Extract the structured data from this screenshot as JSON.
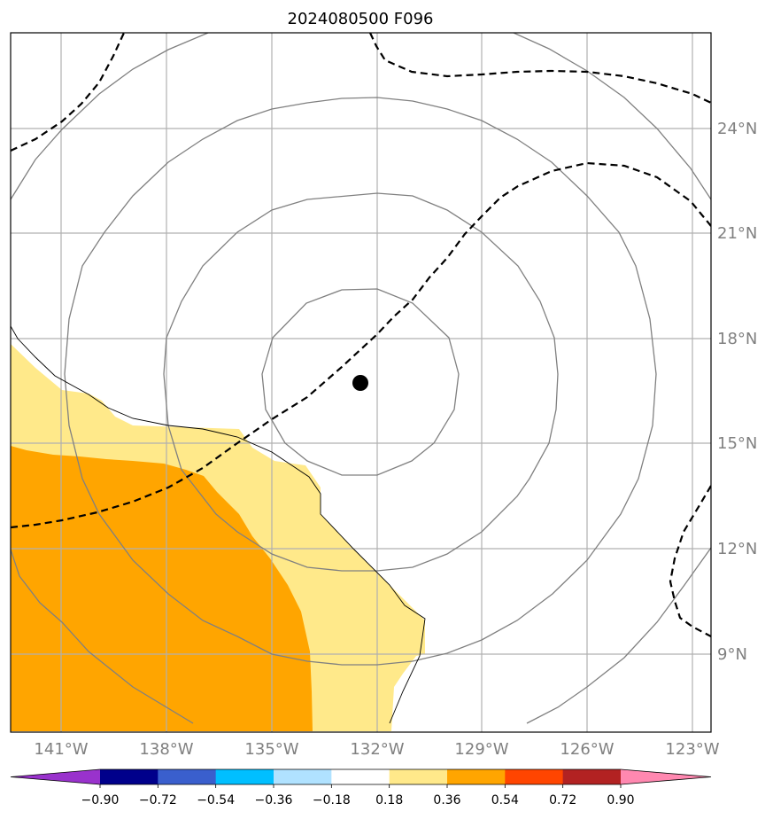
{
  "title": "2024080500 F096",
  "map": {
    "lon_labels": [
      "141°W",
      "138°W",
      "135°W",
      "132°W",
      "129°W",
      "126°W",
      "123°W"
    ],
    "lat_labels": [
      "24°N",
      "21°N",
      "18°N",
      "15°N",
      "12°N",
      "9°N"
    ],
    "storm_center": {
      "lon": -132.5,
      "lat": 16.7
    },
    "colors": {
      "gridline": "#b0b0b0",
      "contour": "#808080",
      "coast": "#000000"
    }
  },
  "colorbar": {
    "ticks": [
      "−0.90",
      "−0.72",
      "−0.54",
      "−0.36",
      "−0.18",
      "0.18",
      "0.36",
      "0.54",
      "0.72",
      "0.90"
    ],
    "colors": [
      "#9932cc",
      "#00008b",
      "#3a5fcd",
      "#00bfff",
      "#b0e2ff",
      "#ffffff",
      "#ffe98a",
      "#ffa500",
      "#ff4500",
      "#b22222",
      "#ff88b0"
    ]
  }
}
